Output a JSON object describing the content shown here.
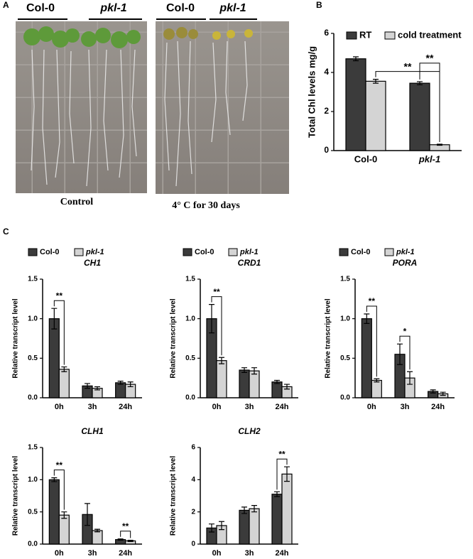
{
  "panel_labels": [
    "A",
    "B",
    "C"
  ],
  "photos": [
    {
      "columns": [
        "Col-0",
        "pkl-1"
      ],
      "caption": "Control"
    },
    {
      "columns": [
        "Col-0",
        "pkl-1"
      ],
      "caption": "4° C for 30 days"
    }
  ],
  "chart_data": [
    {
      "type": "bar",
      "y_label": "Total Chl levels mg/g",
      "categories": [
        "Col-0",
        "pkl-1"
      ],
      "series": [
        {
          "name": "RT",
          "color": "#3b3b3b",
          "values": [
            4.7,
            3.45
          ],
          "errors": [
            0.1,
            0.08
          ]
        },
        {
          "name": "cold treatment",
          "color": "#d4d4d4",
          "values": [
            3.55,
            0.3
          ],
          "errors": [
            0.1,
            0.03
          ]
        }
      ],
      "ylim": [
        0,
        6
      ],
      "yticks": [
        0,
        2,
        4,
        6
      ],
      "legend": true,
      "annotations": [
        "**",
        "**"
      ]
    },
    {
      "type": "bar",
      "title": "CH1",
      "y_label": "Relative transcript level",
      "categories": [
        "0h",
        "3h",
        "24h"
      ],
      "series": [
        {
          "name": "Col-0",
          "color": "#3b3b3b",
          "values": [
            1.0,
            0.15,
            0.19
          ],
          "errors": [
            0.13,
            0.03,
            0.02
          ]
        },
        {
          "name": "pkl-1",
          "color": "#d4d4d4",
          "values": [
            0.36,
            0.12,
            0.17
          ],
          "errors": [
            0.03,
            0.02,
            0.03
          ]
        }
      ],
      "ylim": [
        0,
        1.5
      ],
      "yticks": [
        {
          "value": 0,
          "label": "0.0"
        },
        0.5,
        {
          "value": 1,
          "label": "1.0"
        },
        1.5
      ],
      "legend": true,
      "annotations": [
        "**"
      ]
    },
    {
      "type": "bar",
      "title": "CRD1",
      "y_label": "Relative transcript level",
      "categories": [
        "0h",
        "3h",
        "24h"
      ],
      "series": [
        {
          "name": "Col-0",
          "color": "#3b3b3b",
          "values": [
            1.0,
            0.35,
            0.2
          ],
          "errors": [
            0.18,
            0.03,
            0.02
          ]
        },
        {
          "name": "pkl-1",
          "color": "#d4d4d4",
          "values": [
            0.47,
            0.34,
            0.14
          ],
          "errors": [
            0.04,
            0.04,
            0.03
          ]
        }
      ],
      "ylim": [
        0,
        1.5
      ],
      "yticks": [
        {
          "value": 0,
          "label": "0.0"
        },
        0.5,
        {
          "value": 1,
          "label": "1.0"
        },
        1.5
      ],
      "legend": true,
      "annotations": [
        "**"
      ]
    },
    {
      "type": "bar",
      "title": "PORA",
      "y_label": "Relative transcript level",
      "categories": [
        "0h",
        "3h",
        "24h"
      ],
      "series": [
        {
          "name": "Col-0",
          "color": "#3b3b3b",
          "values": [
            1.0,
            0.55,
            0.08
          ],
          "errors": [
            0.06,
            0.13,
            0.02
          ]
        },
        {
          "name": "pkl-1",
          "color": "#d4d4d4",
          "values": [
            0.22,
            0.25,
            0.05
          ],
          "errors": [
            0.02,
            0.08,
            0.02
          ]
        }
      ],
      "ylim": [
        0,
        1.5
      ],
      "yticks": [
        {
          "value": 0,
          "label": "0.0"
        },
        0.5,
        {
          "value": 1,
          "label": "1.0"
        },
        1.5
      ],
      "legend": true,
      "annotations": [
        "**",
        "*"
      ]
    },
    {
      "type": "bar",
      "title": "CLH1",
      "y_label": "Relative transcript level",
      "categories": [
        "0h",
        "3h",
        "24h"
      ],
      "series": [
        {
          "name": "Col-0",
          "color": "#3b3b3b",
          "values": [
            1.0,
            0.46,
            0.07
          ],
          "errors": [
            0.03,
            0.17,
            0.01
          ]
        },
        {
          "name": "pkl-1",
          "color": "#d4d4d4",
          "values": [
            0.45,
            0.21,
            0.05
          ],
          "errors": [
            0.05,
            0.02,
            0.01
          ]
        }
      ],
      "ylim": [
        0,
        1.5
      ],
      "yticks": [
        {
          "value": 0,
          "label": "0.0"
        },
        0.5,
        {
          "value": 1,
          "label": "1.0"
        },
        1.5
      ],
      "legend": false,
      "annotations": [
        "**",
        "**"
      ]
    },
    {
      "type": "bar",
      "title": "CLH2",
      "y_label": "Relative transcript level",
      "categories": [
        "0h",
        "3h",
        "24h"
      ],
      "series": [
        {
          "name": "Col-0",
          "color": "#3b3b3b",
          "values": [
            1.0,
            2.1,
            3.1
          ],
          "errors": [
            0.25,
            0.2,
            0.15
          ]
        },
        {
          "name": "pkl-1",
          "color": "#d4d4d4",
          "values": [
            1.15,
            2.2,
            4.35
          ],
          "errors": [
            0.25,
            0.2,
            0.45
          ]
        }
      ],
      "ylim": [
        0,
        6
      ],
      "yticks": [
        0,
        2,
        4,
        6
      ],
      "legend": false,
      "annotations": [
        "**"
      ]
    }
  ]
}
